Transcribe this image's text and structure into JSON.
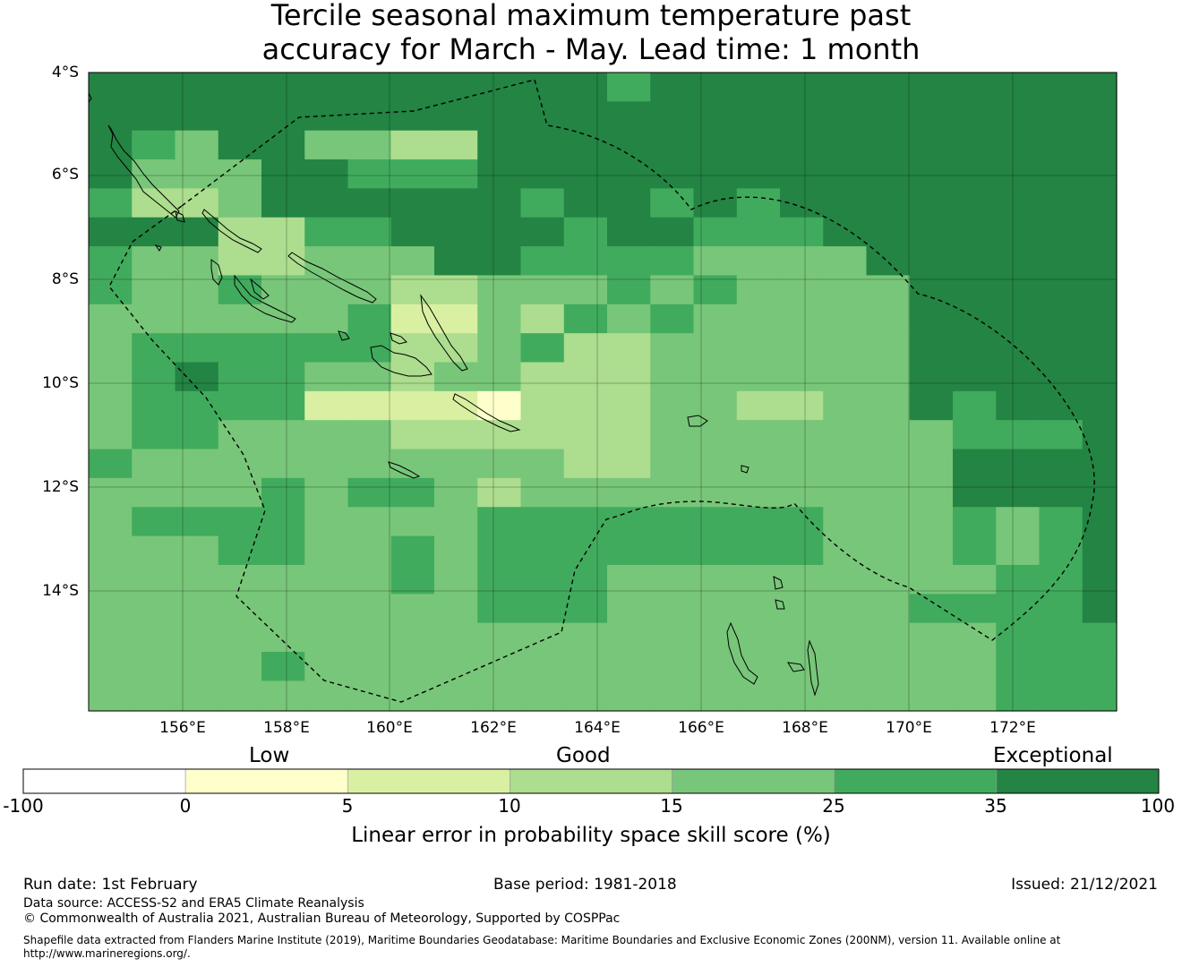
{
  "title_line1": "Tercile seasonal maximum temperature past",
  "title_line2": "accuracy for March - May. Lead time: 1 month",
  "map": {
    "lat_labels": [
      "4°S",
      "6°S",
      "8°S",
      "10°S",
      "12°S",
      "14°S"
    ],
    "lon_labels": [
      "156°E",
      "158°E",
      "160°E",
      "162°E",
      "164°E",
      "166°E",
      "168°E",
      "170°E",
      "172°E"
    ],
    "lon_range": [
      154.2,
      174.0
    ],
    "lat_range": [
      -4.0,
      -16.3
    ],
    "grid_cells_description": "0.83 degree cells; classes: 0 = 0-5, 1 = 5-10, 2 = 10-15, 3 = 15-25, 4 = 25-35, 5 = 35-100"
  },
  "colorbar": {
    "category_labels": [
      "Low",
      "Good",
      "Exceptional"
    ],
    "ticks": [
      "-100",
      "0",
      "5",
      "10",
      "15",
      "25",
      "35",
      "100"
    ],
    "colors": [
      "#ffffff",
      "#ffffcc",
      "#d9f0a3",
      "#addd8e",
      "#78c679",
      "#41ab5d",
      "#238443"
    ],
    "title": "Linear error in probability space skill score (%)"
  },
  "footer": {
    "run_date": "Run date: 1st February",
    "base_period": "Base period: 1981-2018",
    "issued": "Issued: 21/12/2021",
    "data_source": "Data source: ACCESS-S2 and ERA5 Climate Reanalysis",
    "copyright": "© Commonwealth of Australia 2021, Australian Bureau of Meteorology, Supported by COSPPac",
    "shapefile_line1": "Shapefile data extracted from Flanders Marine Institute (2019), Maritime Boundaries Geodatabase: Maritime Boundaries and Exclusive Economic Zones (200NM), version 11. Available online at",
    "shapefile_line2": "http://www.marineregions.org/."
  }
}
